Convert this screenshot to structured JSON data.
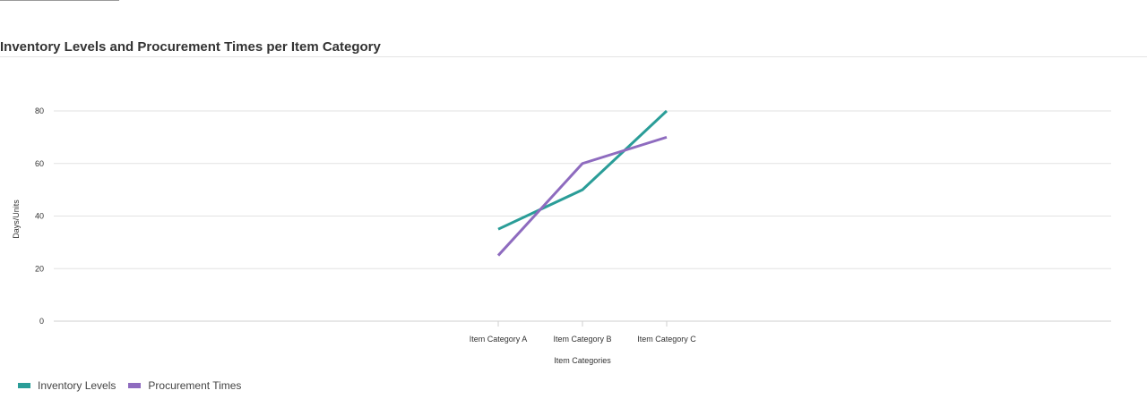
{
  "chart_data": {
    "type": "line",
    "title": "Inventory Levels and Procurement Times per Item Category",
    "xlabel": "Item Categories",
    "ylabel": "Days/Units",
    "categories": [
      "Item Category A",
      "Item Category B",
      "Item Category C"
    ],
    "yticks": [
      0,
      20,
      40,
      60,
      80
    ],
    "ylim": [
      0,
      80
    ],
    "grid": true,
    "legend_position": "bottom-left",
    "series": [
      {
        "name": "Inventory Levels",
        "color": "#2a9d98",
        "values": [
          35,
          50,
          80
        ]
      },
      {
        "name": "Procurement Times",
        "color": "#8e6bbf",
        "values": [
          25,
          60,
          70
        ]
      }
    ]
  }
}
